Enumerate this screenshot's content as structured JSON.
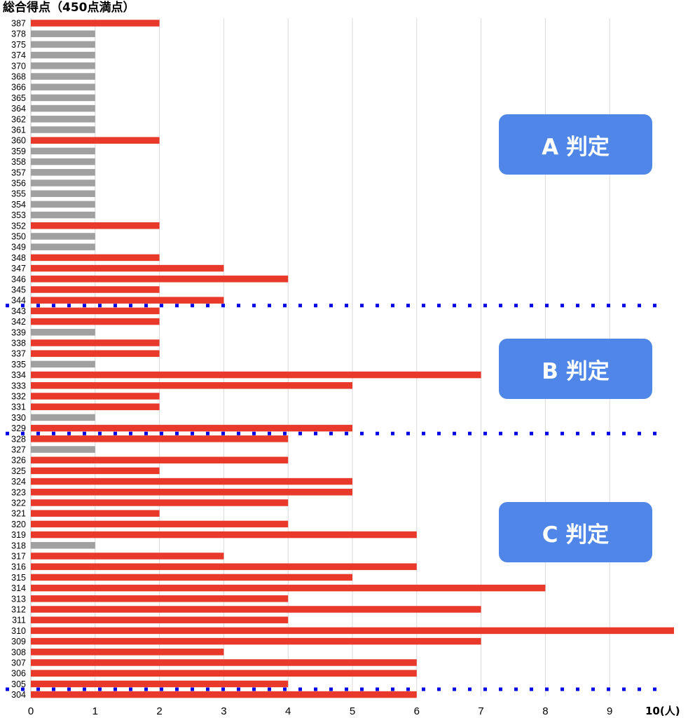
{
  "chart_data": {
    "type": "bar",
    "orientation": "horizontal",
    "title": "総合得点（450点満点）",
    "x_unit_label": "10(人)",
    "xlim": [
      0,
      10
    ],
    "x_ticks": [
      "0",
      "1",
      "2",
      "3",
      "4",
      "5",
      "6",
      "7",
      "8",
      "9"
    ],
    "grid": "vertical",
    "categories": [
      "387",
      "378",
      "375",
      "374",
      "370",
      "368",
      "366",
      "365",
      "364",
      "362",
      "361",
      "360",
      "359",
      "358",
      "357",
      "356",
      "355",
      "354",
      "353",
      "352",
      "350",
      "349",
      "348",
      "347",
      "346",
      "345",
      "344",
      "343",
      "342",
      "339",
      "338",
      "337",
      "335",
      "334",
      "333",
      "332",
      "331",
      "330",
      "329",
      "328",
      "327",
      "326",
      "325",
      "324",
      "323",
      "322",
      "321",
      "320",
      "319",
      "318",
      "317",
      "316",
      "315",
      "314",
      "313",
      "312",
      "311",
      "310",
      "309",
      "308",
      "307",
      "306",
      "305",
      "304"
    ],
    "values": [
      2,
      1,
      1,
      1,
      1,
      1,
      1,
      1,
      1,
      1,
      1,
      2,
      1,
      1,
      1,
      1,
      1,
      1,
      1,
      2,
      1,
      1,
      2,
      3,
      4,
      2,
      3,
      2,
      2,
      1,
      2,
      2,
      1,
      7,
      5,
      2,
      2,
      1,
      5,
      4,
      1,
      4,
      2,
      5,
      5,
      4,
      2,
      4,
      6,
      1,
      3,
      6,
      5,
      8,
      4,
      7,
      4,
      10,
      7,
      3,
      6,
      6,
      4,
      6
    ],
    "colors": {
      "single": "#a0a0a0",
      "multiple": "#e8392b",
      "grid": "#d9d9d9",
      "divider": "#0000e6",
      "grade_box": "#4f86e8"
    },
    "divider_after": [
      "344",
      "329",
      "305"
    ],
    "grade_labels": [
      "A 判定",
      "B 判定",
      "C 判定"
    ]
  }
}
